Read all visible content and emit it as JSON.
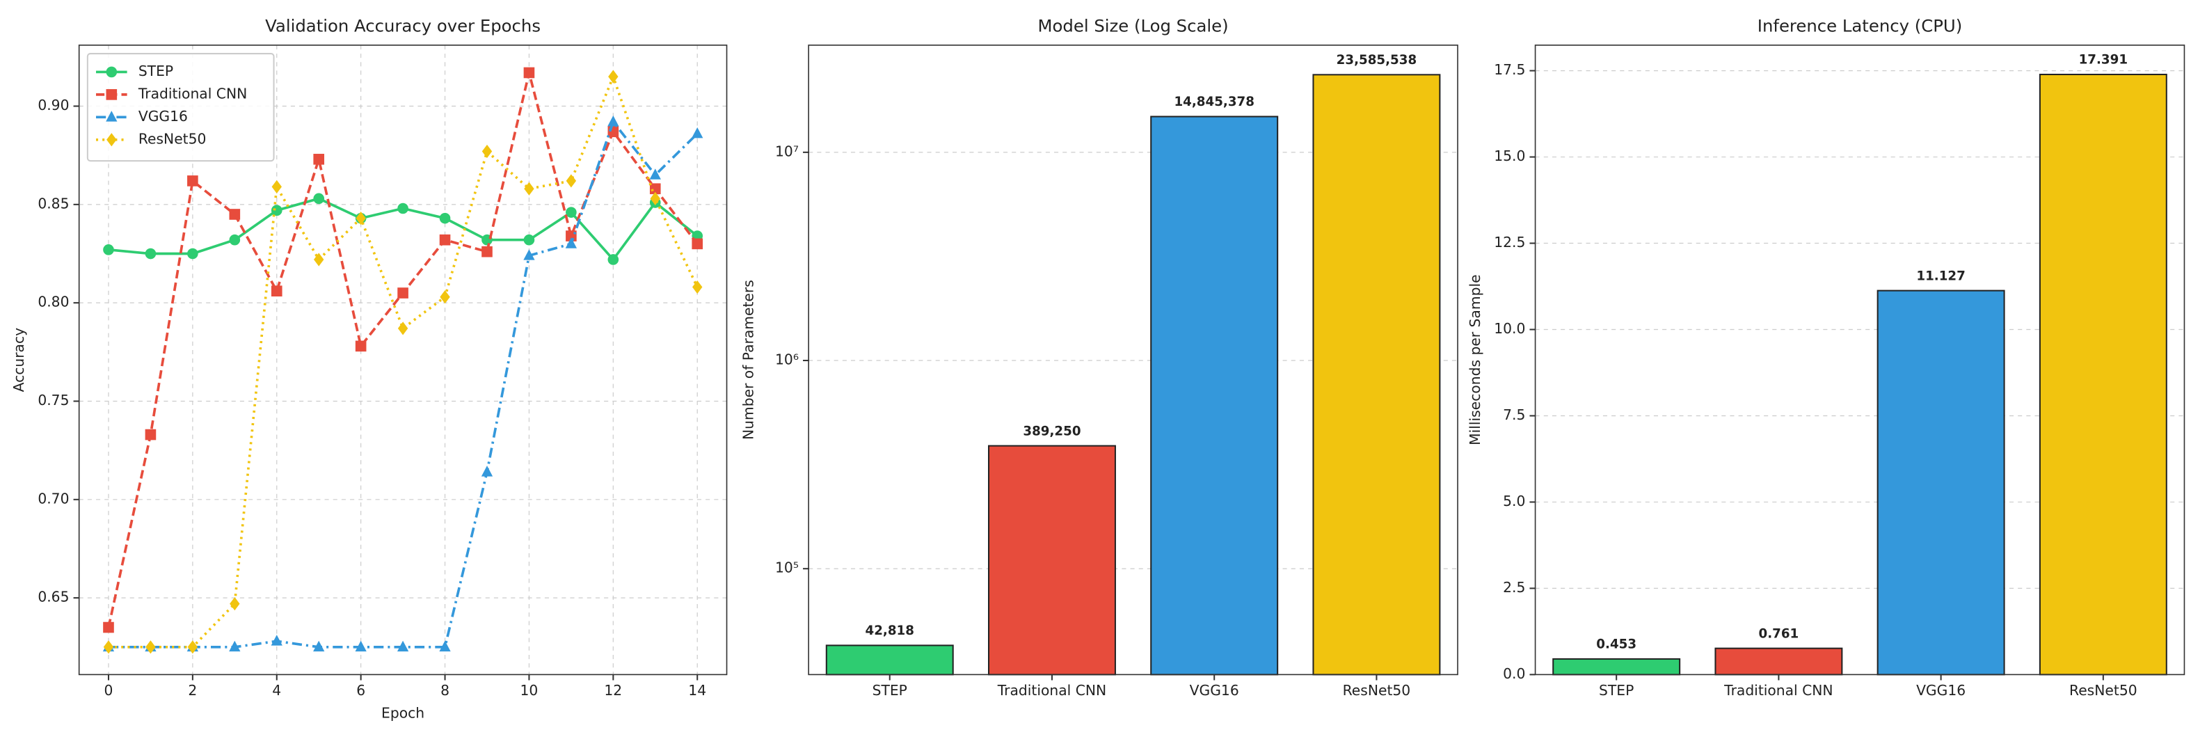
{
  "chart_data": [
    {
      "type": "line",
      "title": "Validation Accuracy over Epochs",
      "x_label": "Epoch",
      "y_label": "Accuracy",
      "x": [
        0,
        1,
        2,
        3,
        4,
        5,
        6,
        7,
        8,
        9,
        10,
        11,
        12,
        13,
        14
      ],
      "series": [
        {
          "name": "STEP",
          "color": "#2ecc71",
          "linestyle": "solid",
          "marker": "circle",
          "values": [
            0.827,
            0.825,
            0.825,
            0.832,
            0.847,
            0.853,
            0.843,
            0.848,
            0.843,
            0.832,
            0.832,
            0.846,
            0.822,
            0.851,
            0.834
          ]
        },
        {
          "name": "Traditional CNN",
          "color": "#e74c3c",
          "linestyle": "dashed",
          "marker": "square",
          "values": [
            0.635,
            0.733,
            0.862,
            0.845,
            0.806,
            0.873,
            0.778,
            0.805,
            0.832,
            0.826,
            0.917,
            0.834,
            0.887,
            0.858,
            0.83
          ]
        },
        {
          "name": "VGG16",
          "color": "#3498db",
          "linestyle": "dashdot",
          "marker": "triangle",
          "values": [
            0.625,
            0.625,
            0.625,
            0.625,
            0.628,
            0.625,
            0.625,
            0.625,
            0.625,
            0.714,
            0.824,
            0.83,
            0.892,
            0.865,
            0.886
          ]
        },
        {
          "name": "ResNet50",
          "color": "#f1c40f",
          "linestyle": "dotted",
          "marker": "diamond",
          "values": [
            0.625,
            0.625,
            0.625,
            0.647,
            0.859,
            0.822,
            0.843,
            0.787,
            0.803,
            0.877,
            0.858,
            0.862,
            0.915,
            0.853,
            0.808
          ]
        }
      ],
      "xlim": [
        -0.7,
        14.7
      ],
      "xticks": [
        0,
        2,
        4,
        6,
        8,
        10,
        12,
        14
      ],
      "ylim": [
        0.611,
        0.931
      ],
      "yticks": [
        0.65,
        {
          "value": 0.7,
          "label": "0.70"
        },
        0.75,
        {
          "value": 0.8,
          "label": "0.80"
        },
        0.85,
        {
          "value": 0.9,
          "label": "0.90"
        }
      ],
      "grid": true,
      "legend": "upper left"
    },
    {
      "type": "bar",
      "title": "Model Size (Log Scale)",
      "y_label": "Number of Parameters",
      "yscale": "log",
      "categories": [
        "STEP",
        "Traditional CNN",
        "VGG16",
        "ResNet50"
      ],
      "values": [
        42818,
        389250,
        14845378,
        23585538
      ],
      "value_labels": [
        "42,818",
        "389,250",
        "14,845,378",
        "23,585,538"
      ],
      "colors": [
        "#2ecc71",
        "#e74c3c",
        "#3498db",
        "#f1c40f"
      ],
      "ylim": [
        31000,
        32700000
      ],
      "yticks": [
        {
          "value": 100000,
          "label": "10⁵"
        },
        {
          "value": 1000000,
          "label": "10⁶"
        },
        {
          "value": 10000000,
          "label": "10⁷"
        }
      ],
      "grid": true
    },
    {
      "type": "bar",
      "title": "Inference Latency (CPU)",
      "y_label": "Milliseconds per Sample",
      "categories": [
        "STEP",
        "Traditional CNN",
        "VGG16",
        "ResNet50"
      ],
      "values": [
        0.453,
        0.761,
        11.127,
        17.391
      ],
      "colors": [
        "#2ecc71",
        "#e74c3c",
        "#3498db",
        "#f1c40f"
      ],
      "ylim": [
        0,
        18.24
      ],
      "yticks": [
        {
          "value": 0,
          "label": "0.0"
        },
        2.5,
        {
          "value": 5,
          "label": "5.0"
        },
        7.5,
        {
          "value": 10,
          "label": "10.0"
        },
        12.5,
        {
          "value": 15,
          "label": "15.0"
        },
        17.5
      ],
      "grid": true
    }
  ]
}
